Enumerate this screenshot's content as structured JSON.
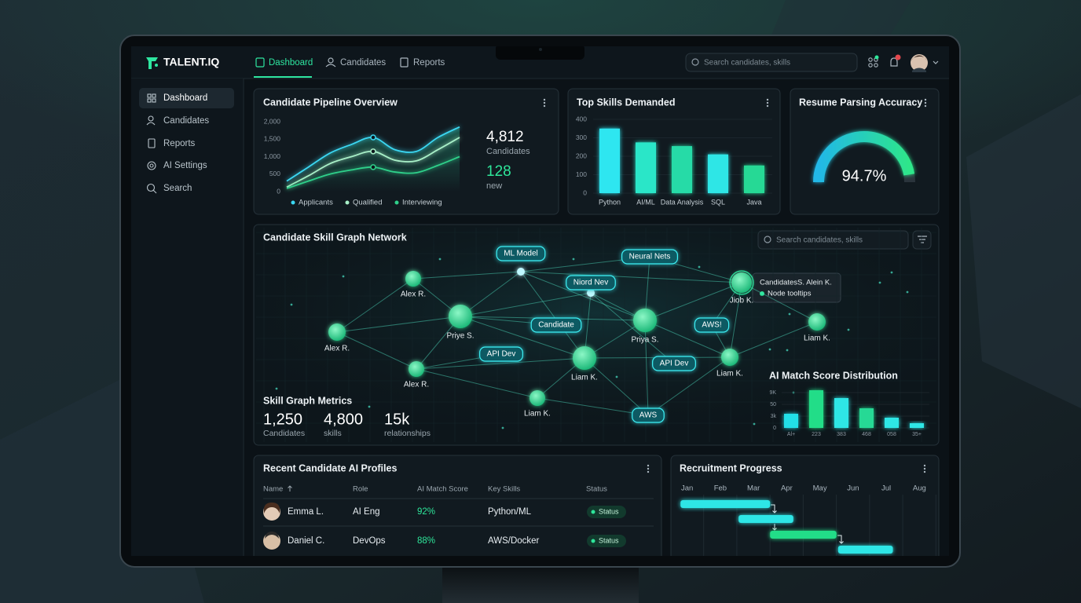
{
  "app": {
    "brand": "TALENT.IQ"
  },
  "top_nav": [
    "Dashboard",
    "Candidates",
    "Reports"
  ],
  "search_placeholder": "Search candidates, skills",
  "sidebar": [
    "Dashboard",
    "Candidates",
    "Reports",
    "AI Settings",
    "Search"
  ],
  "pipeline_stats": [
    {
      "value": "4,812",
      "label": "Candidates"
    },
    {
      "value": "128",
      "label": "new"
    }
  ],
  "chart_data": [
    {
      "type": "line",
      "title": "Candidate Pipeline Overview",
      "ylim": [
        0,
        2000
      ],
      "yticks": [
        0,
        500,
        {
          "value": 1000,
          "label": "1,000"
        },
        {
          "value": 1500,
          "label": "1,500"
        },
        {
          "value": 2000,
          "label": "2,000"
        }
      ],
      "grid": false,
      "series": [
        {
          "name": "Applicants",
          "color": "#3ad7f2",
          "values": [
            300,
            700,
            1100,
            1350,
            1550,
            1200,
            1150,
            1550,
            1850
          ]
        },
        {
          "name": "Qualified",
          "color": "#a8f0c8",
          "values": [
            130,
            450,
            800,
            1000,
            1150,
            900,
            880,
            1200,
            1550
          ]
        },
        {
          "name": "Interviewing",
          "color": "#2fd08a",
          "values": [
            90,
            300,
            500,
            620,
            700,
            560,
            540,
            750,
            1000
          ]
        }
      ]
    },
    {
      "type": "bar",
      "title": "Top Skills Demanded",
      "categories": [
        "Python",
        "AI/ML",
        "Data Analysis",
        "SQL",
        "Java"
      ],
      "values": [
        350,
        275,
        255,
        210,
        150
      ],
      "colors": [
        "#2ee6f0",
        "#29e6c8",
        "#26dba7",
        "#2ee6e6",
        "#26d995"
      ],
      "ylim": [
        0,
        400
      ],
      "yticks": [
        0,
        100,
        200,
        300,
        400
      ],
      "grid": true
    },
    {
      "type": "gauge",
      "title": "Resume Parsing Accuracy",
      "values": [
        94.7
      ],
      "value_labels": [
        "94.7%"
      ],
      "ylim": [
        0,
        100
      ]
    },
    {
      "type": "bar",
      "title": "AI Match Score Distribution",
      "categories": [
        "Al+",
        "223",
        "383",
        "468",
        "058",
        "35+"
      ],
      "values": [
        36,
        96,
        76,
        50,
        26,
        12
      ],
      "colors": [
        "#22e0e8",
        "#22dd88",
        "#2ee6e6",
        "#26d995",
        "#2ee6e6",
        "#2ee6e6"
      ],
      "ylim": [
        0,
        100
      ],
      "yticks": [
        0,
        {
          "value": 30,
          "label": "3k"
        },
        {
          "value": 60,
          "label": "50"
        },
        {
          "value": 90,
          "label": "9K"
        }
      ],
      "grid": true
    },
    {
      "type": "gantt",
      "title": "Recruitment Progress",
      "categories": [
        "Jan",
        "Feb",
        "Mar",
        "Apr",
        "May",
        "Jun",
        "Jul",
        "Aug"
      ],
      "xlim": [
        -0.3,
        7.3
      ],
      "grid": true,
      "tasks": [
        {
          "start": -0.2,
          "end": 2.5,
          "color": "#2ee6e6"
        },
        {
          "start": 1.55,
          "end": 3.2,
          "color": "#2ee6e6"
        },
        {
          "start": 2.5,
          "end": 4.5,
          "color": "#22dd88"
        },
        {
          "start": 4.55,
          "end": 6.2,
          "color": "#2ee6e6"
        }
      ]
    }
  ],
  "skill_graph": {
    "title": "Candidate Skill Graph Network",
    "search_placeholder": "Search candidates, skills",
    "nodes": [
      "Alex R.",
      "Alex R.",
      "Priye S.",
      "Alex R.",
      "Liam K.",
      "Liam K.",
      "Priya S.",
      "Liam K.",
      "Jiob K.",
      "Liam K."
    ],
    "tags": [
      "ML Model",
      "Neural Nets",
      "Niord Nev",
      "Candidate",
      "AWS!",
      "API Dev",
      "API Dev",
      "AWS"
    ],
    "tooltip": {
      "title": "CandidatesS. Alein K.",
      "item": "Node tooltips"
    },
    "metrics_title": "Skill Graph Metrics",
    "metrics": [
      {
        "value": "1,250",
        "label": "Candidates"
      },
      {
        "value": "4,800",
        "label": "skills"
      },
      {
        "value": "15k",
        "label": "relationships"
      }
    ]
  },
  "table": {
    "title": "Recent Candidate AI Profiles",
    "columns": [
      "Name",
      "Role",
      "AI Match Score",
      "Key Skills",
      "Status"
    ],
    "rows": [
      [
        "Emma L.",
        "AI Eng",
        "92%",
        "Python/ML",
        "Status"
      ],
      [
        "Daniel C.",
        "DevOps",
        "88%",
        "AWS/Docker",
        "Status"
      ]
    ]
  }
}
